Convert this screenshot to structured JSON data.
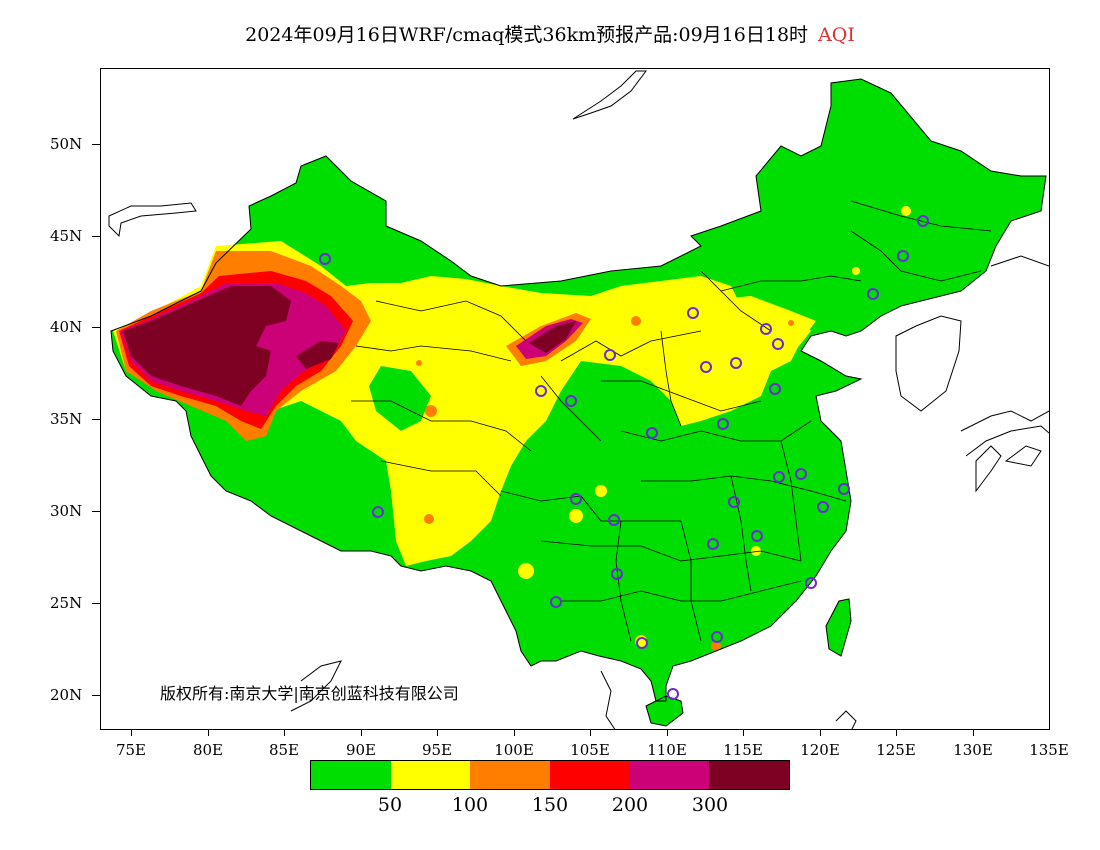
{
  "title": {
    "text": "2024年09月16日WRF/cmaq模式36km预报产品:09月16日18时",
    "variable": "AQI"
  },
  "axes": {
    "lat_labels": [
      "50N",
      "45N",
      "40N",
      "35N",
      "30N",
      "25N",
      "20N"
    ],
    "lon_labels": [
      "75E",
      "80E",
      "85E",
      "90E",
      "95E",
      "100E",
      "105E",
      "110E",
      "115E",
      "120E",
      "125E",
      "130E",
      "135E"
    ]
  },
  "copyright": "版权所有:南京大学|南京创蓝科技有限公司",
  "colorbar": {
    "colors": [
      "#00dd00",
      "#ffff00",
      "#ff7e00",
      "#ff0000",
      "#cc0077",
      "#7e0023"
    ],
    "labels": [
      "50",
      "100",
      "150",
      "200",
      "300"
    ]
  },
  "map": {
    "land_color": "#ffffff",
    "aqi_levels": [
      {
        "level": "0-50",
        "color": "#00dd00"
      },
      {
        "level": "50-100",
        "color": "#ffff00"
      },
      {
        "level": "100-150",
        "color": "#ff7e00"
      },
      {
        "level": "150-200",
        "color": "#ff0000"
      },
      {
        "level": "200-300",
        "color": "#cc0077"
      },
      {
        "level": ">300",
        "color": "#7e0023"
      }
    ],
    "station_marker_color": "#6a2bd6"
  }
}
